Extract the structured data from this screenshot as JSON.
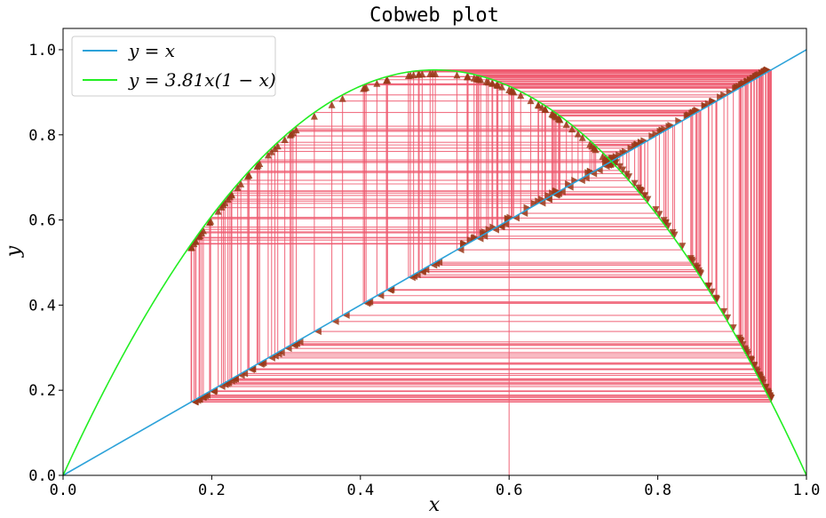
{
  "chart_data": {
    "type": "line",
    "title": "Cobweb plot",
    "xlabel": "x",
    "ylabel": "y",
    "xlim": [
      0.0,
      1.0
    ],
    "ylim": [
      0.0,
      1.05
    ],
    "x_ticks": [
      0.0,
      0.2,
      0.4,
      0.6,
      0.8,
      1.0
    ],
    "y_ticks": [
      0.0,
      0.2,
      0.4,
      0.6,
      0.8,
      1.0
    ],
    "x_tick_labels": [
      "0.0",
      "0.2",
      "0.4",
      "0.6",
      "0.8",
      "1.0"
    ],
    "y_tick_labels": [
      "0.0",
      "0.2",
      "0.4",
      "0.6",
      "0.8",
      "1.0"
    ],
    "r": 3.81,
    "x0": 0.6,
    "iterations": 200,
    "grid": false,
    "legend_position": "upper-left",
    "series": [
      {
        "name": "y = x",
        "kind": "identity",
        "color": "#2ca2d9"
      },
      {
        "name": "y = 3.81x(1 − x)",
        "kind": "logistic",
        "color": "#22ee22"
      },
      {
        "kind": "cobweb",
        "color": "#ee5a70",
        "arrow_color": "#9a3a1a"
      }
    ]
  },
  "legend": [
    {
      "label": "y = x",
      "color": "#2ca2d9"
    },
    {
      "label": "y = 3.81x(1 − x)",
      "color": "#22ee22"
    }
  ]
}
